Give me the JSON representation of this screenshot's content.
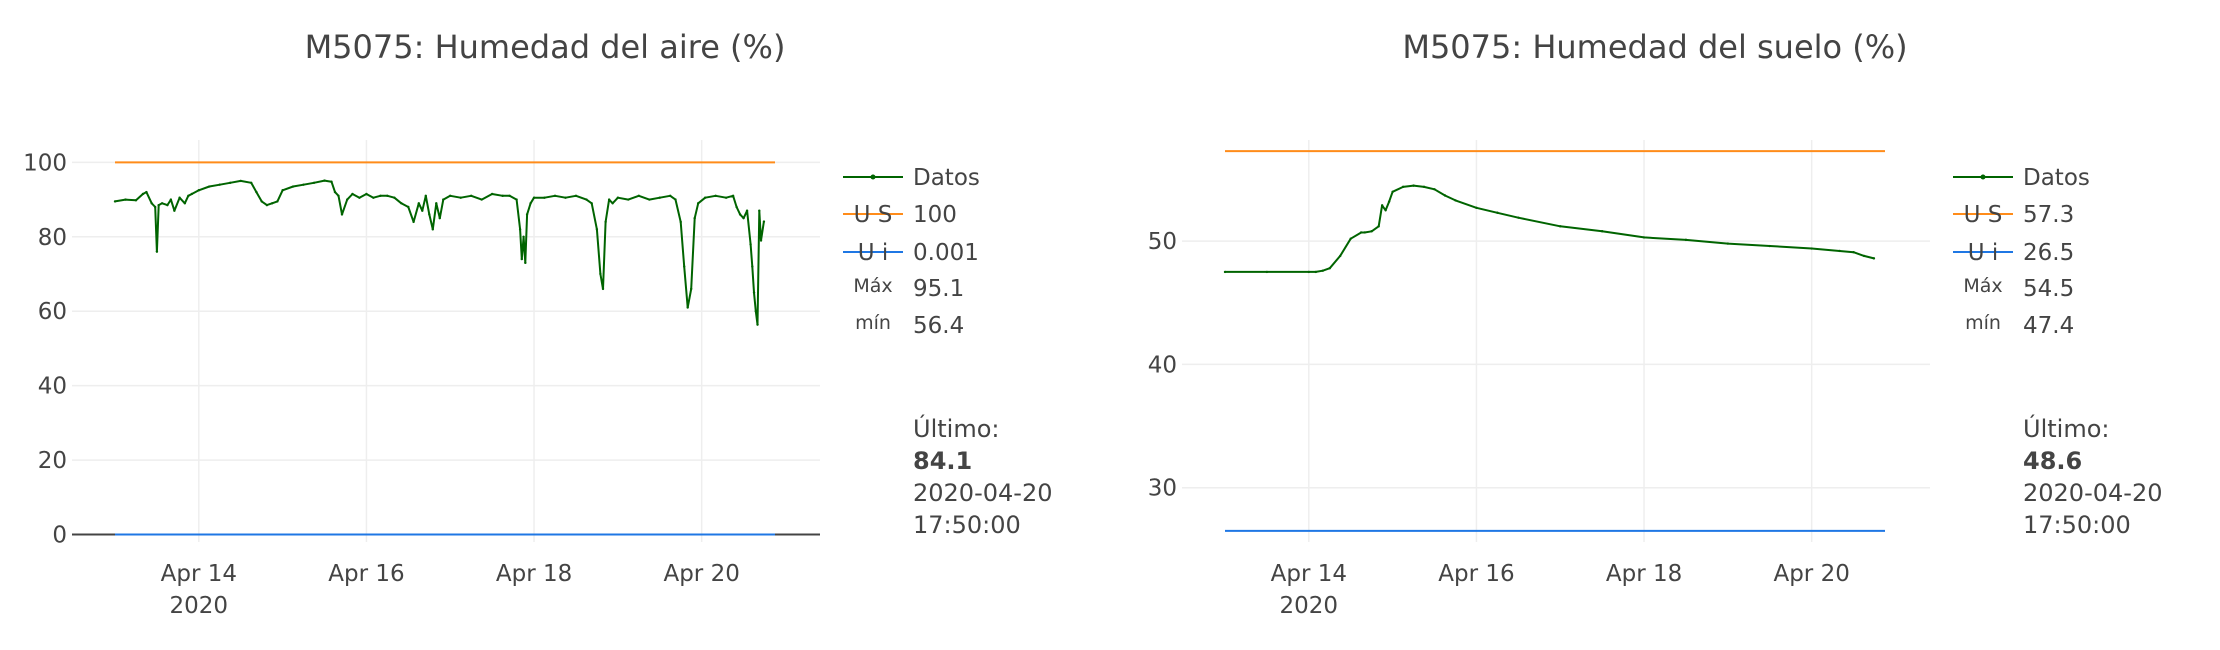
{
  "chart_data": [
    {
      "type": "line",
      "title": "M5075: Humedad del aire (%)",
      "xlabel": "",
      "ylabel": "",
      "x_range": [
        "2020-04-13 00:00:00",
        "2020-04-20 21:00:00"
      ],
      "ylim": [
        -2,
        106
      ],
      "y_ticks": [
        0,
        20,
        40,
        60,
        80,
        100
      ],
      "x_ticks": [
        {
          "x": "2020-04-14",
          "label": "Apr 14",
          "sub": "2020"
        },
        {
          "x": "2020-04-16",
          "label": "Apr 16",
          "sub": ""
        },
        {
          "x": "2020-04-18",
          "label": "Apr 18",
          "sub": ""
        },
        {
          "x": "2020-04-20",
          "label": "Apr 20",
          "sub": ""
        }
      ],
      "grid": true,
      "zero_line": true,
      "legend_position": "right",
      "series": [
        {
          "name": "Datos",
          "color": "#006400",
          "x": [
            "2020-04-13 00:00",
            "2020-04-13 03:00",
            "2020-04-13 06:00",
            "2020-04-13 08:00",
            "2020-04-13 09:00",
            "2020-04-13 10:30",
            "2020-04-13 11:30",
            "2020-04-13 12:00",
            "2020-04-13 12:30",
            "2020-04-13 13:30",
            "2020-04-13 15:00",
            "2020-04-13 16:00",
            "2020-04-13 17:00",
            "2020-04-13 18:30",
            "2020-04-13 20:00",
            "2020-04-13 21:00",
            "2020-04-13 22:00",
            "2020-04-14 00:00",
            "2020-04-14 03:00",
            "2020-04-14 06:00",
            "2020-04-14 09:00",
            "2020-04-14 12:00",
            "2020-04-14 15:00",
            "2020-04-14 16:30",
            "2020-04-14 18:00",
            "2020-04-14 19:30",
            "2020-04-14 21:00",
            "2020-04-14 22:30",
            "2020-04-15 00:00",
            "2020-04-15 03:00",
            "2020-04-15 06:00",
            "2020-04-15 09:00",
            "2020-04-15 12:00",
            "2020-04-15 14:00",
            "2020-04-15 15:00",
            "2020-04-15 16:00",
            "2020-04-15 17:00",
            "2020-04-15 18:30",
            "2020-04-15 20:00",
            "2020-04-15 22:00",
            "2020-04-16 00:00",
            "2020-04-16 02:00",
            "2020-04-16 04:00",
            "2020-04-16 06:00",
            "2020-04-16 08:00",
            "2020-04-16 10:00",
            "2020-04-16 12:00",
            "2020-04-16 13:30",
            "2020-04-16 15:00",
            "2020-04-16 16:00",
            "2020-04-16 17:00",
            "2020-04-16 18:00",
            "2020-04-16 19:00",
            "2020-04-16 20:00",
            "2020-04-16 21:00",
            "2020-04-16 22:00",
            "2020-04-17 00:00",
            "2020-04-17 03:00",
            "2020-04-17 06:00",
            "2020-04-17 09:00",
            "2020-04-17 12:00",
            "2020-04-17 15:00",
            "2020-04-17 17:00",
            "2020-04-17 19:00",
            "2020-04-17 20:00",
            "2020-04-17 20:30",
            "2020-04-17 21:00",
            "2020-04-17 21:30",
            "2020-04-17 22:00",
            "2020-04-17 23:00",
            "2020-04-18 00:00",
            "2020-04-18 03:00",
            "2020-04-18 06:00",
            "2020-04-18 09:00",
            "2020-04-18 12:00",
            "2020-04-18 15:00",
            "2020-04-18 16:30",
            "2020-04-18 18:00",
            "2020-04-18 19:00",
            "2020-04-18 19:45",
            "2020-04-18 20:30",
            "2020-04-18 21:30",
            "2020-04-18 22:30",
            "2020-04-19 00:00",
            "2020-04-19 03:00",
            "2020-04-19 06:00",
            "2020-04-19 09:00",
            "2020-04-19 12:00",
            "2020-04-19 15:00",
            "2020-04-19 16:30",
            "2020-04-19 18:00",
            "2020-04-19 19:00",
            "2020-04-19 20:00",
            "2020-04-19 21:00",
            "2020-04-19 22:00",
            "2020-04-19 23:00",
            "2020-04-20 01:00",
            "2020-04-20 04:00",
            "2020-04-20 07:00",
            "2020-04-20 09:00",
            "2020-04-20 10:00",
            "2020-04-20 11:00",
            "2020-04-20 12:00",
            "2020-04-20 13:00",
            "2020-04-20 14:00",
            "2020-04-20 14:30",
            "2020-04-20 15:00",
            "2020-04-20 15:30",
            "2020-04-20 16:00",
            "2020-04-20 16:30",
            "2020-04-20 17:00",
            "2020-04-20 17:50"
          ],
          "y": [
            89.5,
            90,
            89.8,
            91.5,
            92,
            89,
            88,
            76,
            88.5,
            89,
            88.5,
            90,
            87,
            90.5,
            89,
            91,
            91.5,
            92.5,
            93.5,
            94,
            94.5,
            95,
            94.5,
            92,
            89.5,
            88.5,
            89,
            89.5,
            92.5,
            93.5,
            94,
            94.5,
            95.1,
            94.8,
            92,
            91,
            86,
            90,
            91.5,
            90.5,
            91.5,
            90.5,
            91,
            91,
            90.5,
            89,
            88,
            84,
            89,
            87,
            91,
            86,
            82,
            89,
            85,
            90,
            91,
            90.5,
            91,
            90,
            91.5,
            91,
            91,
            90,
            82,
            74,
            80,
            73,
            86,
            89,
            90.5,
            90.5,
            91,
            90.5,
            91,
            90,
            89,
            82,
            70,
            66,
            84,
            90,
            89,
            90.5,
            90,
            91,
            90,
            90.5,
            91,
            90,
            84,
            72,
            61,
            66,
            85,
            89,
            90.5,
            91,
            90.5,
            91,
            88,
            86,
            85,
            87,
            78,
            72,
            65,
            60,
            56.4,
            87,
            79,
            84.1
          ]
        },
        {
          "name": "U S",
          "color": "#ff8c1a",
          "value": 100,
          "label": "100"
        },
        {
          "name": "U i",
          "color": "#1f77e4",
          "value": 0.001,
          "label": "0.001"
        }
      ],
      "stats": [
        {
          "name": "Máx",
          "value": "95.1"
        },
        {
          "name": "mín",
          "value": "56.4"
        }
      ],
      "last": {
        "label": "Último:",
        "value": "84.1",
        "date": "2020-04-20",
        "time": "17:50:00"
      }
    },
    {
      "type": "line",
      "title": "M5075: Humedad del suelo (%)",
      "xlabel": "",
      "ylabel": "",
      "x_range": [
        "2020-04-13 00:00:00",
        "2020-04-20 21:00:00"
      ],
      "ylim": [
        25.6,
        58.2
      ],
      "y_ticks": [
        30,
        40,
        50
      ],
      "x_ticks": [
        {
          "x": "2020-04-14",
          "label": "Apr 14",
          "sub": "2020"
        },
        {
          "x": "2020-04-16",
          "label": "Apr 16",
          "sub": ""
        },
        {
          "x": "2020-04-18",
          "label": "Apr 18",
          "sub": ""
        },
        {
          "x": "2020-04-20",
          "label": "Apr 20",
          "sub": ""
        }
      ],
      "grid": true,
      "zero_line": false,
      "legend_position": "right",
      "series": [
        {
          "name": "Datos",
          "color": "#006400",
          "x": [
            "2020-04-13 00:00",
            "2020-04-13 12:00",
            "2020-04-14 00:00",
            "2020-04-14 02:00",
            "2020-04-14 04:00",
            "2020-04-14 06:00",
            "2020-04-14 09:00",
            "2020-04-14 12:00",
            "2020-04-14 15:00",
            "2020-04-14 16:00",
            "2020-04-14 18:00",
            "2020-04-14 20:00",
            "2020-04-14 21:00",
            "2020-04-14 22:00",
            "2020-04-14 23:00",
            "2020-04-15 00:00",
            "2020-04-15 03:00",
            "2020-04-15 06:00",
            "2020-04-15 09:00",
            "2020-04-15 12:00",
            "2020-04-15 15:00",
            "2020-04-15 18:00",
            "2020-04-16 00:00",
            "2020-04-16 06:00",
            "2020-04-16 12:00",
            "2020-04-17 00:00",
            "2020-04-17 12:00",
            "2020-04-18 00:00",
            "2020-04-18 12:00",
            "2020-04-19 00:00",
            "2020-04-19 12:00",
            "2020-04-20 00:00",
            "2020-04-20 08:00",
            "2020-04-20 12:00",
            "2020-04-20 15:00",
            "2020-04-20 17:50"
          ],
          "y": [
            47.5,
            47.5,
            47.5,
            47.5,
            47.6,
            47.8,
            48.8,
            50.2,
            50.7,
            50.7,
            50.8,
            51.2,
            52.9,
            52.5,
            53.2,
            54,
            54.4,
            54.5,
            54.4,
            54.2,
            53.7,
            53.3,
            52.7,
            52.3,
            51.9,
            51.2,
            50.8,
            50.3,
            50.1,
            49.8,
            49.6,
            49.4,
            49.2,
            49.1,
            48.8,
            48.6
          ]
        },
        {
          "name": "U S",
          "color": "#ff8c1a",
          "value": 57.3,
          "label": "57.3"
        },
        {
          "name": "U i",
          "color": "#1f77e4",
          "value": 26.5,
          "label": "26.5"
        }
      ],
      "stats": [
        {
          "name": "Máx",
          "value": "54.5"
        },
        {
          "name": "mín",
          "value": "47.4"
        }
      ],
      "last": {
        "label": "Último:",
        "value": "48.6",
        "date": "2020-04-20",
        "time": "17:50:00"
      }
    }
  ]
}
